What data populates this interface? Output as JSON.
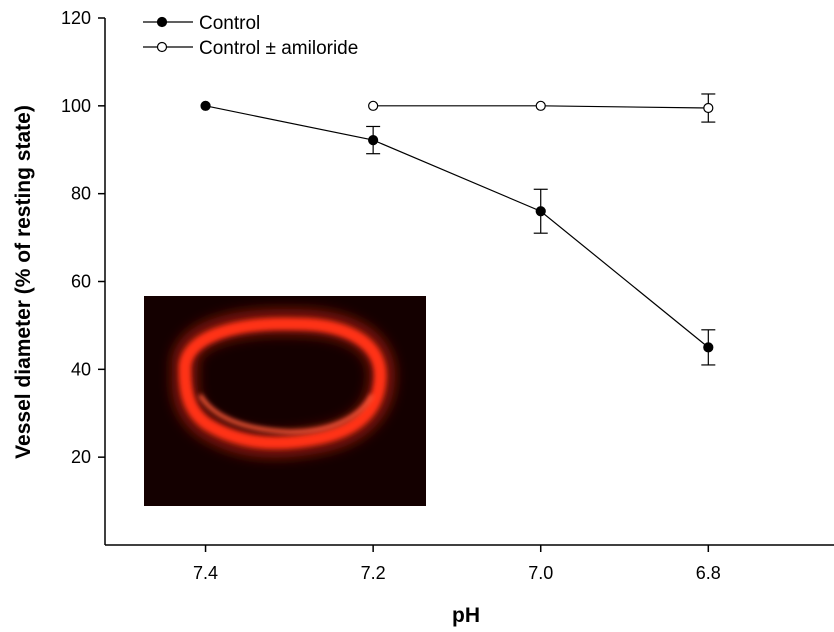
{
  "chart_data": {
    "type": "line",
    "xlabel": "pH",
    "ylabel": "Vessel diameter (% of resting state)",
    "x_reversed": true,
    "x_ticks": [
      "7.4",
      "7.2",
      "7.0",
      "6.8"
    ],
    "y_ticks": [
      "20",
      "40",
      "60",
      "80",
      "100",
      "120"
    ],
    "xlim": [
      7.52,
      6.65
    ],
    "ylim": [
      0,
      120
    ],
    "series": [
      {
        "name": "Control",
        "marker": "filled-circle",
        "color": "#000000",
        "x": [
          7.4,
          7.2,
          7.0,
          6.8
        ],
        "y": [
          100,
          92.2,
          76,
          45
        ],
        "error": [
          0,
          3.1,
          5.0,
          4.0
        ]
      },
      {
        "name": "Control ± amiloride",
        "marker": "open-circle",
        "color": "#000000",
        "x": [
          7.2,
          7.0,
          6.8
        ],
        "y": [
          100,
          100,
          99.5
        ],
        "error": [
          0,
          0,
          3.2
        ]
      }
    ],
    "legend_position": "top-left",
    "inset": {
      "icon": "vessel-fluorescence-micrograph",
      "background": "#140000",
      "stain_color": "#ff2a12"
    }
  }
}
